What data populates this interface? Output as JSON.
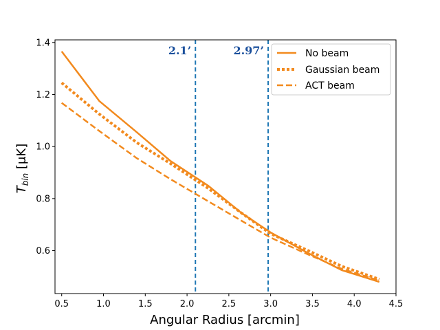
{
  "chart_data": {
    "type": "line",
    "xlabel": "Angular Radius [arcmin]",
    "ylabel": "T_bin [μK]",
    "ylabel_parts": {
      "base": "T",
      "sub": "bin",
      "unit": " [μK]"
    },
    "xlim": [
      0.42,
      4.5
    ],
    "ylim": [
      0.435,
      1.41
    ],
    "xticks": [
      0.5,
      1.0,
      1.5,
      2.0,
      2.5,
      3.0,
      3.5,
      4.0,
      4.5
    ],
    "xtick_labels": [
      "0.5",
      "1.0",
      "1.5",
      "2.0",
      "2.5",
      "3.0",
      "3.5",
      "4.0",
      "4.5"
    ],
    "yticks": [
      0.6,
      0.8,
      1.0,
      1.2,
      1.4
    ],
    "ytick_labels": [
      "0.6",
      "0.8",
      "1.0",
      "1.2",
      "1.4"
    ],
    "grid": false,
    "legend_position": "top-right",
    "series": [
      {
        "name": "No beam",
        "style": "solid",
        "color": "#f28a1e",
        "x": [
          0.5,
          0.95,
          1.4,
          1.8,
          2.25,
          2.65,
          3.0,
          3.45,
          3.85,
          4.3
        ],
        "y": [
          1.366,
          1.175,
          1.055,
          0.945,
          0.85,
          0.745,
          0.67,
          0.59,
          0.525,
          0.48
        ]
      },
      {
        "name": "Gaussian beam",
        "style": "dotted",
        "color": "#f28a1e",
        "x": [
          0.5,
          0.95,
          1.4,
          1.8,
          2.25,
          2.65,
          3.0,
          3.45,
          3.85,
          4.3
        ],
        "y": [
          1.245,
          1.125,
          1.015,
          0.935,
          0.84,
          0.745,
          0.665,
          0.6,
          0.54,
          0.49
        ]
      },
      {
        "name": "ACT beam",
        "style": "dashed",
        "color": "#f28a1e",
        "x": [
          0.5,
          0.95,
          1.4,
          1.8,
          2.25,
          2.65,
          3.0,
          3.45,
          3.85,
          4.3
        ],
        "y": [
          1.168,
          1.06,
          0.955,
          0.875,
          0.79,
          0.715,
          0.65,
          0.585,
          0.53,
          0.485
        ]
      }
    ],
    "vlines": [
      {
        "x": 2.1,
        "label": "2.1’",
        "color": "#1f77b4"
      },
      {
        "x": 2.97,
        "label": "2.97’",
        "color": "#1f77b4"
      }
    ],
    "annotation_color": "#1a4f9c"
  }
}
